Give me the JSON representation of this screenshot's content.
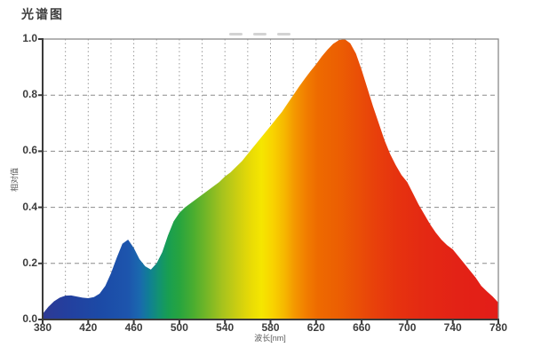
{
  "page": {
    "title": "光谱图"
  },
  "chart_data": {
    "type": "area",
    "title": "光谱图",
    "xlabel": "波长[nm]",
    "ylabel": "相对值",
    "xlim": [
      380,
      780
    ],
    "ylim": [
      0.0,
      1.0
    ],
    "x_tick_labels": [
      "380",
      "420",
      "460",
      "500",
      "540",
      "580",
      "620",
      "660",
      "700",
      "740",
      "780"
    ],
    "x_tick_values": [
      380,
      420,
      460,
      500,
      540,
      580,
      620,
      660,
      700,
      740,
      780
    ],
    "y_tick_labels": [
      "0.0",
      "0.2",
      "0.4",
      "0.6",
      "0.8",
      "1.0"
    ],
    "y_tick_values": [
      0.0,
      0.2,
      0.4,
      0.6,
      0.8,
      1.0
    ],
    "grid": {
      "on": true,
      "x_step": 20,
      "y_step": 0.2,
      "style": "dotted",
      "color": "#9a9a9a"
    },
    "legend": "none",
    "series": [
      {
        "name": "spectrum-relative-intensity",
        "x": [
          380,
          385,
          390,
          395,
          400,
          405,
          410,
          415,
          420,
          425,
          430,
          435,
          440,
          445,
          450,
          455,
          460,
          465,
          470,
          475,
          480,
          485,
          490,
          495,
          500,
          505,
          510,
          515,
          520,
          525,
          530,
          535,
          540,
          545,
          550,
          555,
          560,
          565,
          570,
          575,
          580,
          585,
          590,
          595,
          600,
          605,
          610,
          615,
          620,
          625,
          630,
          635,
          640,
          645,
          650,
          655,
          660,
          665,
          670,
          675,
          680,
          685,
          690,
          695,
          700,
          705,
          710,
          715,
          720,
          725,
          730,
          735,
          740,
          745,
          750,
          755,
          760,
          765,
          770,
          775,
          780
        ],
        "values": [
          0.02,
          0.045,
          0.065,
          0.078,
          0.085,
          0.086,
          0.082,
          0.078,
          0.076,
          0.08,
          0.092,
          0.12,
          0.165,
          0.22,
          0.27,
          0.285,
          0.255,
          0.215,
          0.19,
          0.178,
          0.2,
          0.24,
          0.3,
          0.35,
          0.38,
          0.4,
          0.415,
          0.43,
          0.445,
          0.46,
          0.475,
          0.49,
          0.51,
          0.525,
          0.545,
          0.565,
          0.59,
          0.615,
          0.64,
          0.665,
          0.69,
          0.715,
          0.74,
          0.77,
          0.8,
          0.83,
          0.858,
          0.885,
          0.91,
          0.938,
          0.962,
          0.983,
          0.996,
          1.0,
          0.985,
          0.948,
          0.89,
          0.825,
          0.76,
          0.7,
          0.64,
          0.59,
          0.55,
          0.515,
          0.49,
          0.45,
          0.41,
          0.375,
          0.34,
          0.31,
          0.285,
          0.265,
          0.25,
          0.225,
          0.2,
          0.175,
          0.15,
          0.12,
          0.1,
          0.082,
          0.06
        ]
      }
    ],
    "fill_gradient": [
      {
        "nm": 380,
        "color": "#2e3a94"
      },
      {
        "nm": 400,
        "color": "#243f9e"
      },
      {
        "nm": 430,
        "color": "#1c4aa6"
      },
      {
        "nm": 455,
        "color": "#1d55ad"
      },
      {
        "nm": 465,
        "color": "#1a68ae"
      },
      {
        "nm": 473,
        "color": "#107e96"
      },
      {
        "nm": 482,
        "color": "#129272"
      },
      {
        "nm": 490,
        "color": "#189e52"
      },
      {
        "nm": 500,
        "color": "#27a43f"
      },
      {
        "nm": 512,
        "color": "#49ad30"
      },
      {
        "nm": 525,
        "color": "#78b726"
      },
      {
        "nm": 538,
        "color": "#a7c31d"
      },
      {
        "nm": 550,
        "color": "#c9cd12"
      },
      {
        "nm": 562,
        "color": "#e7da06"
      },
      {
        "nm": 572,
        "color": "#f5e600"
      },
      {
        "nm": 582,
        "color": "#f8d300"
      },
      {
        "nm": 592,
        "color": "#f6b800"
      },
      {
        "nm": 602,
        "color": "#f49500"
      },
      {
        "nm": 612,
        "color": "#f17c00"
      },
      {
        "nm": 622,
        "color": "#ee6a00"
      },
      {
        "nm": 638,
        "color": "#ec6002"
      },
      {
        "nm": 655,
        "color": "#ea5106"
      },
      {
        "nm": 672,
        "color": "#e8400b"
      },
      {
        "nm": 692,
        "color": "#e6320f"
      },
      {
        "nm": 715,
        "color": "#e42913"
      },
      {
        "nm": 745,
        "color": "#e32216"
      },
      {
        "nm": 780,
        "color": "#e31d18"
      }
    ],
    "faint_top_marks": {
      "count": 3,
      "color": "#c4c4c4"
    },
    "axis_color": "#3a3a3a",
    "frame_color": "#8a8a8a"
  }
}
